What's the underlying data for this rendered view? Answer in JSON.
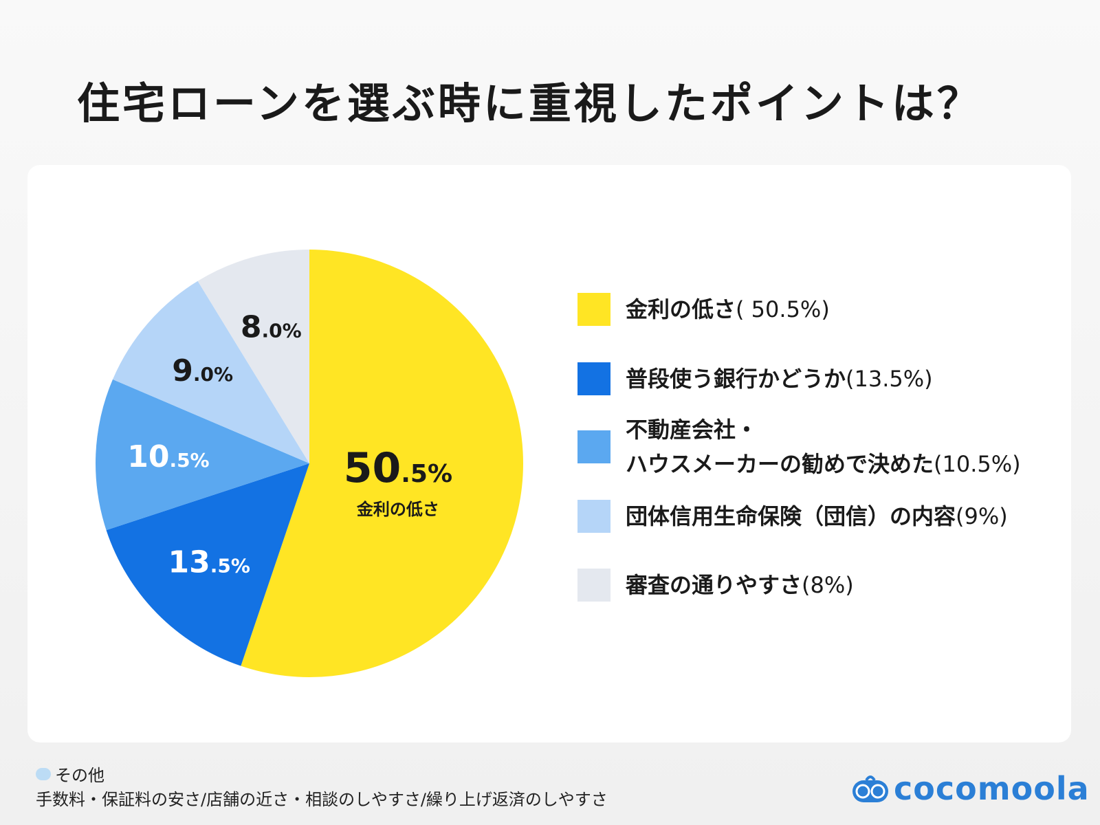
{
  "chart_data": {
    "type": "pie",
    "title": "住宅ローンを選ぶ時に重視したポイントは？",
    "start": "top",
    "direction": "clockwise",
    "slices": [
      {
        "label": "金利の低さ",
        "legend": "金利の低さ",
        "legend_pct": "( 50.5%)",
        "value": 50.5,
        "label_text": "50.5%",
        "color": "#FFE524",
        "label_color": "#1a1a1a"
      },
      {
        "label": "普段使う銀行かどうか",
        "legend": "普段使う銀行かどうか",
        "legend_pct": "(13.5%)",
        "value": 13.5,
        "label_text": "13.5%",
        "color": "#1372E3",
        "label_color": "#ffffff"
      },
      {
        "label": "不動産会社・ハウスメーカーの勧めで決めた",
        "legend": "不動産会社・\nハウスメーカーの勧めで決めた",
        "legend_pct": "(10.5%)",
        "value": 10.5,
        "label_text": "10.5%",
        "color": "#5BA8F0",
        "label_color": "#ffffff"
      },
      {
        "label": "団体信用生命保険（団信）の内容",
        "legend": "団体信用生命保険（団信）の内容",
        "legend_pct": "(9%)",
        "value": 9.0,
        "label_text": "9.0%",
        "color": "#B5D5F8",
        "label_color": "#1a1a1a"
      },
      {
        "label": "審査の通りやすさ",
        "legend": "審査の通りやすさ",
        "legend_pct": "(8%)",
        "value": 8.0,
        "label_text": "8.0%",
        "color": "#E4E8EF",
        "label_color": "#1a1a1a"
      }
    ],
    "center_sublabel": "金利の低さ",
    "legend_placement": "right"
  },
  "footer": {
    "other_heading": "その他",
    "other_items": "手数料・保証料の安さ/店舗の近さ・相談のしやすさ/繰り上げ返済のしやすさ"
  },
  "logo": {
    "text": "cocomoola",
    "color": "#2B7FD6"
  }
}
